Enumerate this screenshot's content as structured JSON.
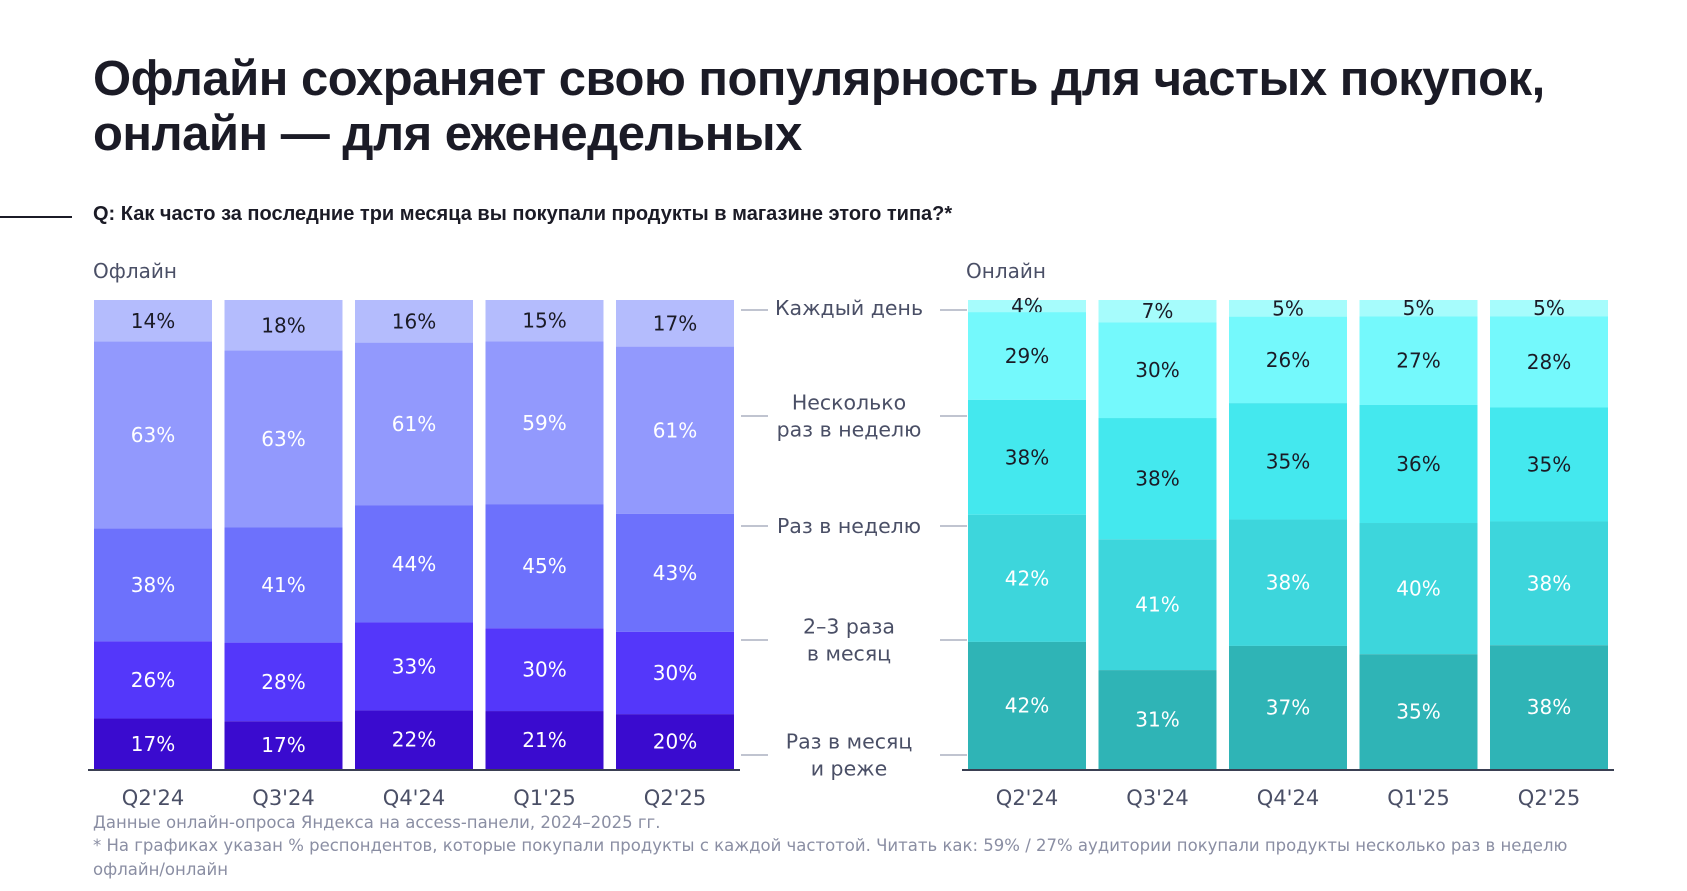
{
  "title_line1": "Офлайн сохраняет свою популярность для частых покупок,",
  "title_line2": "онлайн — для еженедельных",
  "question": "Q: Как часто за последние три месяца вы покупали продукты в магазине этого типа?*",
  "footnote1": "Данные онлайн-опроса Яндекса на access-панели, 2024–2025 гг.",
  "footnote2": "* На графиках указан % респондентов, которые покупали продукты с каждой частотой. Читать как: 59% / 27% аудитории покупали продукты несколько раз в неделю",
  "footnote3": "офлайн/онлайн",
  "chart_data": {
    "type": "bar",
    "stacked": true,
    "categories": [
      "Q2'24",
      "Q3'24",
      "Q4'24",
      "Q1'25",
      "Q2'25"
    ],
    "frequency_labels": [
      [
        "Каждый день"
      ],
      [
        "Несколько",
        "раз в неделю"
      ],
      [
        "Раз в неделю"
      ],
      [
        "2–3 раза",
        "в месяц"
      ],
      [
        "Раз в месяц",
        "и реже"
      ]
    ],
    "panels": [
      {
        "title": "Офлайн",
        "colors": [
          "#b4bcfd",
          "#9299fd",
          "#6d71fc",
          "#5437fa",
          "#3a0bcf"
        ],
        "label_colors": [
          "#1b1b26",
          "#ffffff",
          "#ffffff",
          "#ffffff",
          "#ffffff"
        ],
        "series": [
          {
            "name": "Каждый день",
            "values": [
              14,
              18,
              16,
              15,
              17
            ]
          },
          {
            "name": "Несколько раз в неделю",
            "values": [
              63,
              63,
              61,
              59,
              61
            ]
          },
          {
            "name": "Раз в неделю",
            "values": [
              38,
              41,
              44,
              45,
              43
            ]
          },
          {
            "name": "2–3 раза в месяц",
            "values": [
              26,
              28,
              33,
              30,
              30
            ]
          },
          {
            "name": "Раз в месяц и реже",
            "values": [
              17,
              17,
              22,
              21,
              20
            ]
          }
        ]
      },
      {
        "title": "Онлайн",
        "colors": [
          "#a6fcfc",
          "#74f9fc",
          "#44e8ee",
          "#3dd6dc",
          "#2fb4b6"
        ],
        "label_colors": [
          "#1b1b26",
          "#1b1b26",
          "#1b1b26",
          "#ffffff",
          "#ffffff"
        ],
        "series": [
          {
            "name": "Каждый день",
            "values": [
              4,
              7,
              5,
              5,
              5
            ]
          },
          {
            "name": "Несколько раз в неделю",
            "values": [
              29,
              30,
              26,
              27,
              28
            ]
          },
          {
            "name": "Раз в неделю",
            "values": [
              38,
              38,
              35,
              36,
              35
            ]
          },
          {
            "name": "2–3 раза в месяц",
            "values": [
              42,
              41,
              38,
              40,
              38
            ]
          },
          {
            "name": "Раз в месяц и реже",
            "values": [
              42,
              31,
              37,
              35,
              38
            ]
          }
        ]
      }
    ]
  }
}
